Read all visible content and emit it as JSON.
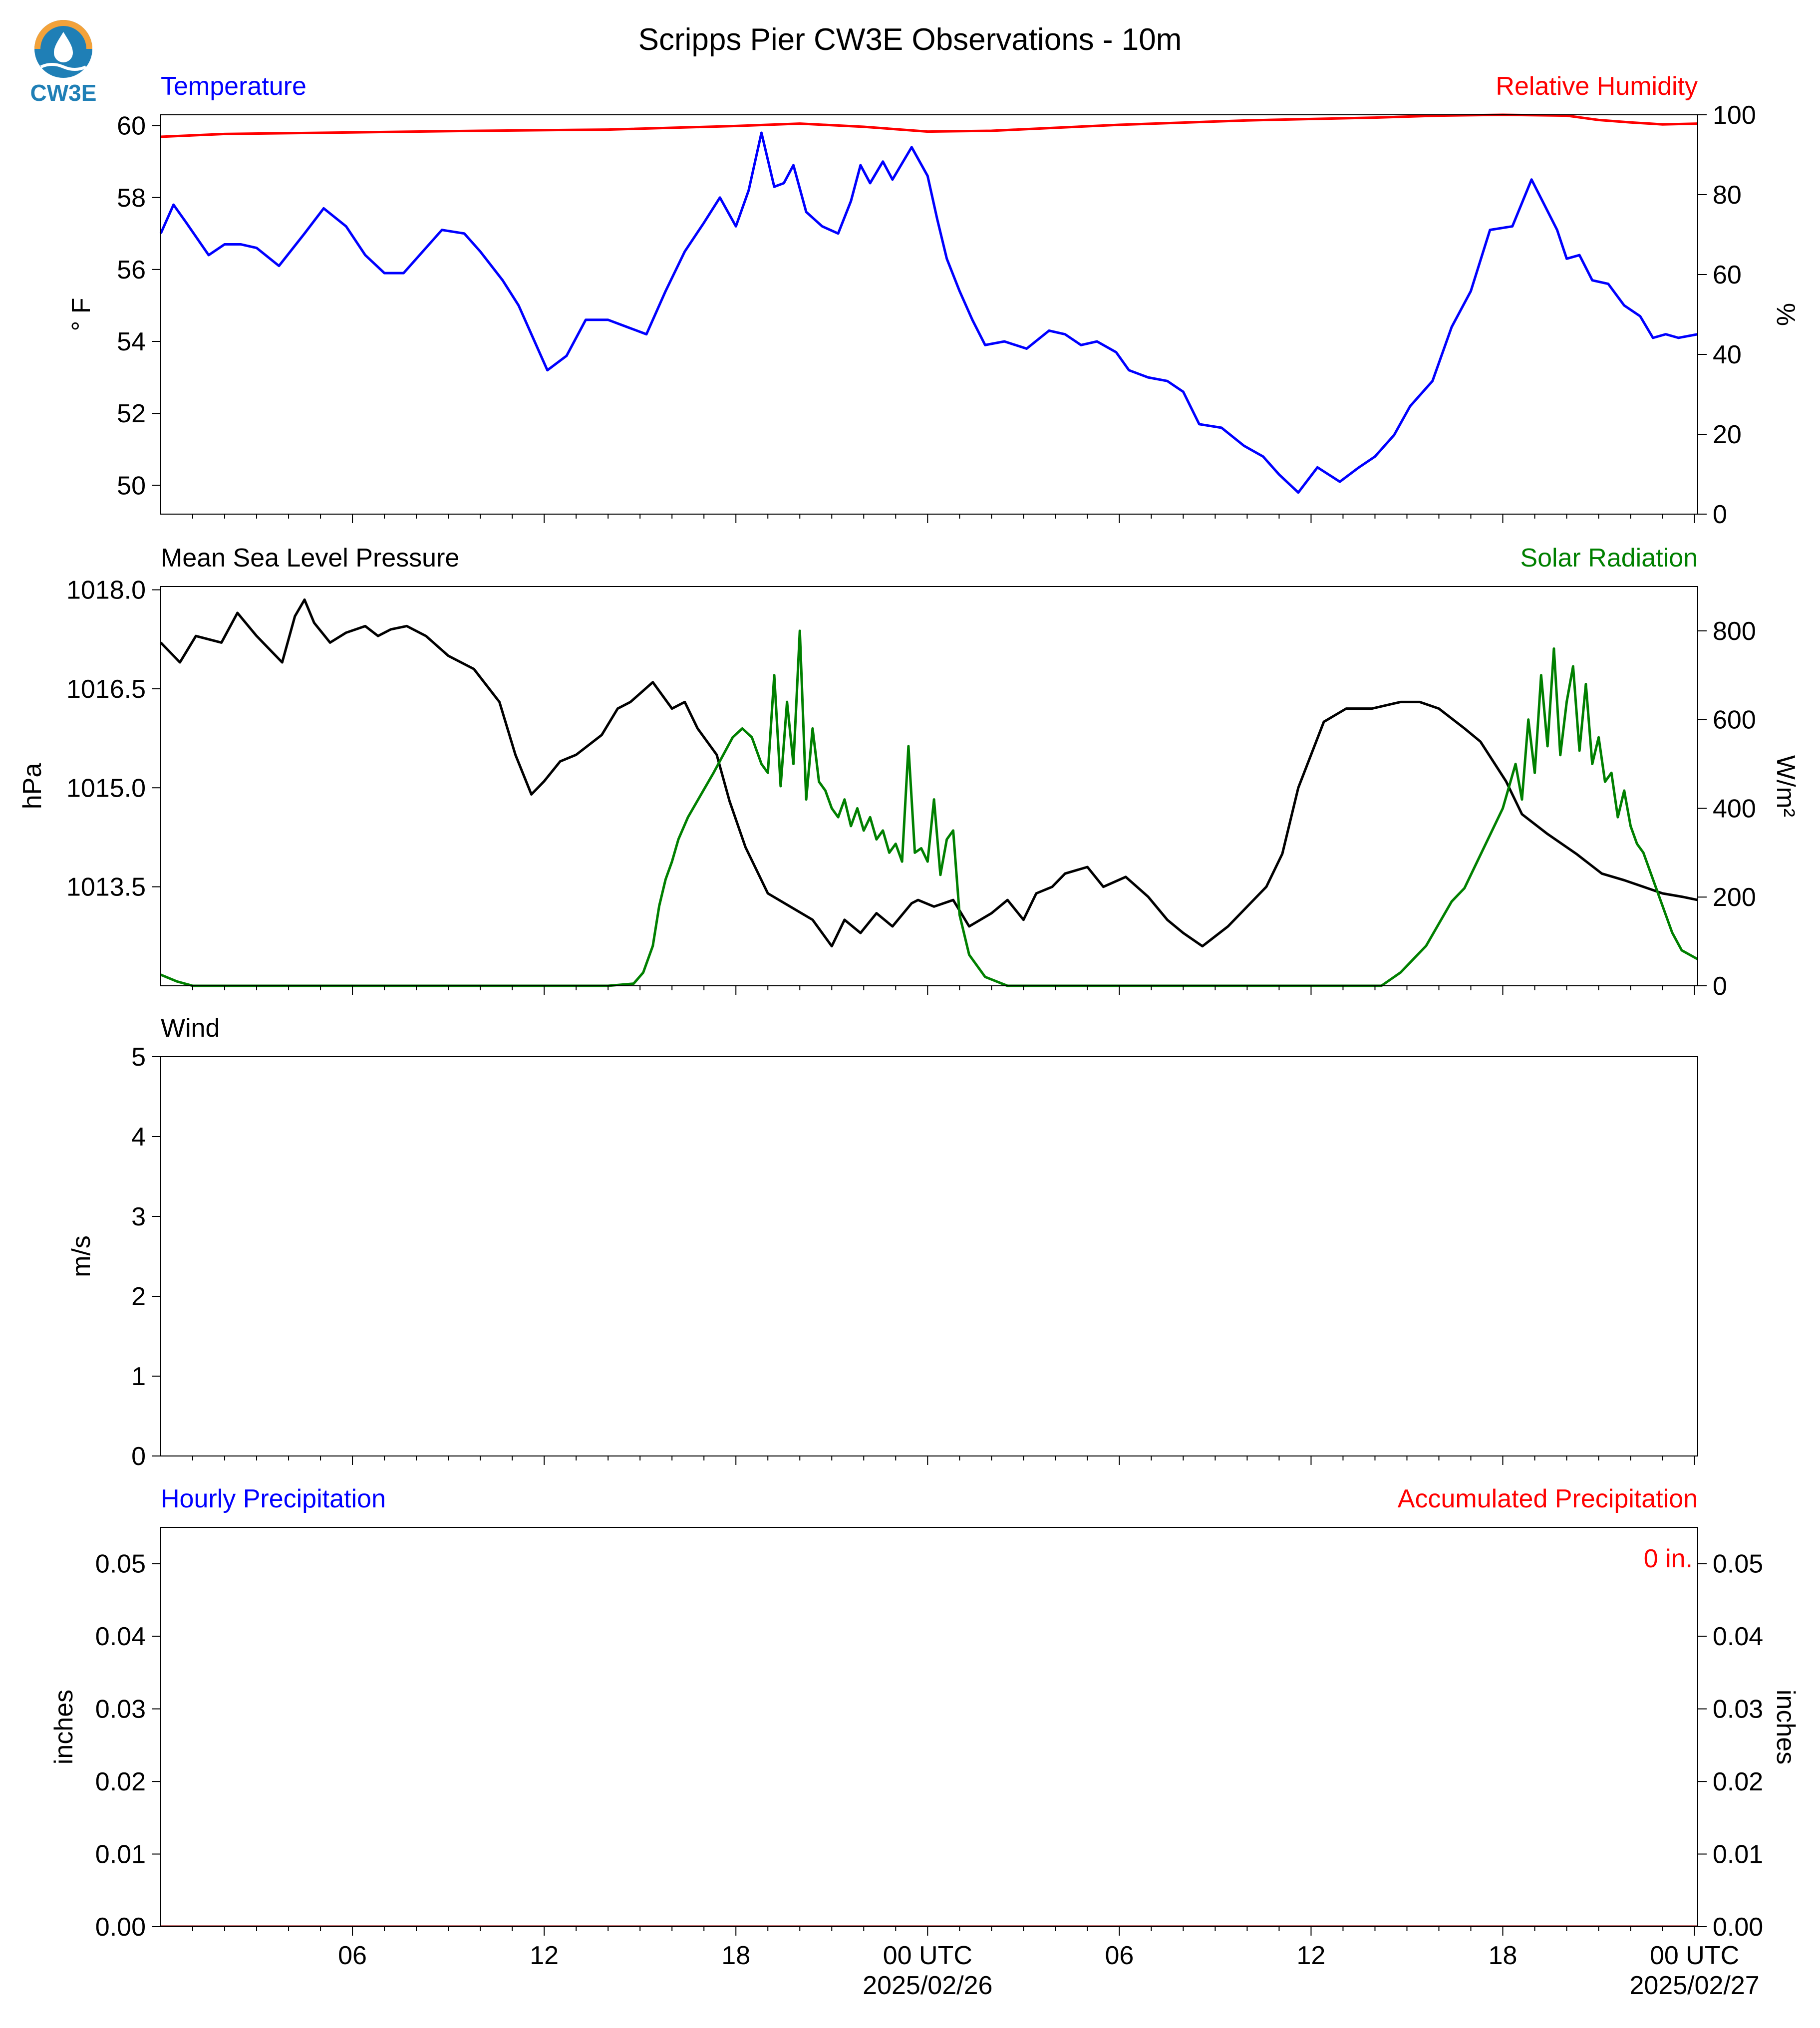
{
  "title": "Scripps Pier CW3E Observations - 10m",
  "logo": {
    "text": "CW3E",
    "icon": "cw3e-drop-logo-icon",
    "colors": {
      "orange": "#f3a23a",
      "blue": "#1f7fb6"
    }
  },
  "chart_data": [
    {
      "id": "temp_rh",
      "type": "line",
      "title_left": "Temperature",
      "title_right": "Relative Humidity",
      "ylabel_left": "° F",
      "ylabel_right": "%",
      "ylim_left": [
        49.2,
        60.3
      ],
      "ylim_right": [
        0,
        100
      ],
      "yticks_left": [
        50,
        52,
        54,
        56,
        58,
        60
      ],
      "yticks_right": [
        0,
        20,
        40,
        60,
        80,
        100
      ],
      "xlim_hours": [
        -24,
        24.1
      ],
      "series": [
        {
          "name": "Temperature",
          "axis": "left",
          "color": "#0000ff",
          "x": [
            -24,
            -23.6,
            -23.2,
            -22.5,
            -22,
            -21.5,
            -21,
            -20.3,
            -19.5,
            -18.9,
            -18.2,
            -17.6,
            -17,
            -16.4,
            -15.8,
            -15.2,
            -14.5,
            -14,
            -13.3,
            -12.8,
            -12.3,
            -11.9,
            -11.3,
            -10.7,
            -10,
            -9.4,
            -8.8,
            -8.2,
            -7.6,
            -7,
            -6.5,
            -6,
            -5.6,
            -5.2,
            -4.8,
            -4.5,
            -4.2,
            -3.8,
            -3.3,
            -2.8,
            -2.4,
            -2.1,
            -1.8,
            -1.4,
            -1.1,
            -0.5,
            0,
            0.3,
            0.6,
            1,
            1.4,
            1.8,
            2.4,
            3.1,
            3.8,
            4.3,
            4.8,
            5.3,
            5.9,
            6.3,
            6.9,
            7.5,
            8,
            8.5,
            9.2,
            9.9,
            10.5,
            11,
            11.6,
            12.2,
            12.9,
            13.5,
            14,
            14.6,
            15.1,
            15.8,
            16.4,
            17,
            17.6,
            18.3,
            18.9,
            19.3,
            19.7,
            20,
            20.4,
            20.8,
            21.3,
            21.8,
            22.3,
            22.7,
            23.1,
            23.5,
            24.1
          ],
          "y": [
            57.0,
            57.8,
            57.3,
            56.4,
            56.7,
            56.7,
            56.6,
            56.1,
            57.0,
            57.7,
            57.2,
            56.4,
            55.9,
            55.9,
            56.5,
            57.1,
            57.0,
            56.5,
            55.7,
            55.0,
            54.0,
            53.2,
            53.6,
            54.6,
            54.6,
            54.4,
            54.2,
            55.4,
            56.5,
            57.3,
            58.0,
            57.2,
            58.2,
            59.8,
            58.3,
            58.4,
            58.9,
            57.6,
            57.2,
            57.0,
            57.9,
            58.9,
            58.4,
            59.0,
            58.5,
            59.4,
            58.6,
            57.4,
            56.3,
            55.4,
            54.6,
            53.9,
            54.0,
            53.8,
            54.3,
            54.2,
            53.9,
            54.0,
            53.7,
            53.2,
            53.0,
            52.9,
            52.6,
            51.7,
            51.6,
            51.1,
            50.8,
            50.3,
            49.8,
            50.5,
            50.1,
            50.5,
            50.8,
            51.4,
            52.2,
            52.9,
            54.4,
            55.4,
            57.1,
            57.2,
            58.5,
            57.8,
            57.1,
            56.3,
            56.4,
            55.7,
            55.6,
            55.0,
            54.7,
            54.1,
            54.2,
            54.1,
            54.2
          ]
        },
        {
          "name": "Relative Humidity",
          "axis": "right",
          "color": "#ff0000",
          "x": [
            -24,
            -22,
            -18,
            -14,
            -10,
            -6,
            -4,
            -2,
            0,
            2,
            6,
            10,
            14,
            16,
            18,
            20,
            21,
            22,
            23,
            24.1
          ],
          "y": [
            94.5,
            95.2,
            95.6,
            96,
            96.3,
            97.2,
            97.8,
            97,
            95.8,
            96,
            97.5,
            98.6,
            99.3,
            99.8,
            100,
            99.8,
            98.7,
            98.1,
            97.6,
            97.8
          ]
        }
      ]
    },
    {
      "id": "pressure_solar",
      "type": "line",
      "title_left": "Mean Sea Level Pressure",
      "title_right": "Solar Radiation",
      "ylabel_left": "hPa",
      "ylabel_right": "W/m²",
      "ylim_left": [
        1012.0,
        1018.05
      ],
      "ylim_right": [
        0,
        900
      ],
      "yticks_left": [
        1013.5,
        1015.0,
        1016.5,
        1018.0
      ],
      "yticks_left_labels": [
        "1013.5",
        "1015.0",
        "1016.5",
        "1018.0"
      ],
      "yticks_right": [
        0,
        200,
        400,
        600,
        800
      ],
      "xlim_hours": [
        -24,
        24.1
      ],
      "series": [
        {
          "name": "Mean Sea Level Pressure",
          "axis": "left",
          "color": "#000000",
          "x": [
            -24,
            -23.4,
            -22.9,
            -22.1,
            -21.6,
            -21,
            -20.2,
            -19.8,
            -19.5,
            -19.2,
            -18.7,
            -18.2,
            -17.6,
            -17.2,
            -16.8,
            -16.3,
            -15.7,
            -15,
            -14.2,
            -13.4,
            -12.9,
            -12.4,
            -12,
            -11.5,
            -11,
            -10.2,
            -9.7,
            -9.3,
            -8.6,
            -8,
            -7.6,
            -7.2,
            -6.6,
            -6.2,
            -5.7,
            -5,
            -4.3,
            -3.6,
            -3.0,
            -2.6,
            -2.1,
            -1.6,
            -1.1,
            -0.5,
            -0.3,
            0.2,
            0.8,
            1.3,
            2.0,
            2.5,
            3.0,
            3.4,
            3.9,
            4.3,
            5.0,
            5.5,
            6.2,
            6.9,
            7.5,
            8.0,
            8.6,
            9.4,
            10,
            10.6,
            11.1,
            11.6,
            12.4,
            13.1,
            13.9,
            14.8,
            15.4,
            16,
            16.8,
            17.3,
            18.1,
            18.6,
            19.4,
            20.3,
            21.1,
            21.8,
            22.4,
            23,
            23.6,
            24.1
          ],
          "y": [
            1017.2,
            1016.9,
            1017.3,
            1017.2,
            1017.65,
            1017.3,
            1016.9,
            1017.6,
            1017.85,
            1017.5,
            1017.2,
            1017.35,
            1017.45,
            1017.3,
            1017.4,
            1017.45,
            1017.3,
            1017.0,
            1016.8,
            1016.3,
            1015.5,
            1014.9,
            1015.1,
            1015.4,
            1015.5,
            1015.8,
            1016.2,
            1016.3,
            1016.6,
            1016.2,
            1016.3,
            1015.9,
            1015.5,
            1014.8,
            1014.1,
            1013.4,
            1013.2,
            1013.0,
            1012.6,
            1013.0,
            1012.8,
            1013.1,
            1012.9,
            1013.25,
            1013.3,
            1013.2,
            1013.3,
            1012.9,
            1013.1,
            1013.3,
            1013.0,
            1013.4,
            1013.5,
            1013.7,
            1013.8,
            1013.5,
            1013.65,
            1013.35,
            1013.0,
            1012.8,
            1012.6,
            1012.9,
            1013.2,
            1013.5,
            1014.0,
            1015.0,
            1016.0,
            1016.2,
            1016.2,
            1016.3,
            1016.3,
            1016.2,
            1015.9,
            1015.7,
            1015.1,
            1014.6,
            1014.3,
            1014.0,
            1013.7,
            1013.6,
            1013.5,
            1013.4,
            1013.35,
            1013.3
          ]
        },
        {
          "name": "Solar Radiation",
          "axis": "right",
          "color": "#008000",
          "x": [
            -24,
            -23.5,
            -23,
            -20,
            -16,
            -12,
            -10,
            -9.2,
            -8.9,
            -8.6,
            -8.4,
            -8.2,
            -8.0,
            -7.8,
            -7.5,
            -7.1,
            -6.7,
            -6.4,
            -6.1,
            -5.8,
            -5.5,
            -5.2,
            -5.0,
            -4.8,
            -4.6,
            -4.4,
            -4.2,
            -4.0,
            -3.8,
            -3.6,
            -3.4,
            -3.2,
            -3.0,
            -2.8,
            -2.6,
            -2.4,
            -2.2,
            -2.0,
            -1.8,
            -1.6,
            -1.4,
            -1.2,
            -1.0,
            -0.8,
            -0.6,
            -0.4,
            -0.2,
            0.0,
            0.2,
            0.4,
            0.6,
            0.8,
            1.0,
            1.3,
            1.8,
            2.5,
            4,
            8,
            12,
            14.2,
            14.8,
            15.2,
            15.6,
            16.0,
            16.4,
            16.8,
            17.2,
            17.6,
            18.0,
            18.4,
            18.6,
            18.8,
            19.0,
            19.2,
            19.4,
            19.6,
            19.8,
            20.0,
            20.2,
            20.4,
            20.6,
            20.8,
            21.0,
            21.2,
            21.4,
            21.6,
            21.8,
            22.0,
            22.2,
            22.4,
            22.6,
            22.8,
            23.0,
            23.3,
            23.6,
            24.1
          ],
          "y": [
            25,
            10,
            0,
            0,
            0,
            0,
            0,
            5,
            30,
            90,
            180,
            240,
            280,
            330,
            380,
            430,
            480,
            520,
            560,
            580,
            560,
            500,
            480,
            700,
            450,
            640,
            500,
            800,
            420,
            580,
            460,
            440,
            400,
            380,
            420,
            360,
            400,
            350,
            380,
            330,
            350,
            300,
            320,
            280,
            540,
            300,
            310,
            280,
            420,
            250,
            330,
            350,
            160,
            70,
            20,
            0,
            0,
            0,
            0,
            0,
            30,
            60,
            90,
            140,
            190,
            220,
            280,
            340,
            400,
            500,
            420,
            600,
            480,
            700,
            540,
            760,
            520,
            640,
            720,
            530,
            680,
            500,
            560,
            460,
            480,
            380,
            440,
            360,
            320,
            300,
            260,
            220,
            180,
            120,
            80,
            60
          ]
        }
      ]
    },
    {
      "id": "wind",
      "type": "line",
      "title_left": "Wind",
      "ylabel_left": "m/s",
      "ylim_left": [
        0,
        5
      ],
      "yticks_left": [
        0,
        1,
        2,
        3,
        4,
        5
      ],
      "xlim_hours": [
        -24,
        24.1
      ],
      "series": []
    },
    {
      "id": "precip",
      "type": "bar",
      "title_left": "Hourly Precipitation",
      "title_right": "Accumulated Precipitation",
      "ylabel_left": "inches",
      "ylabel_right": "inches",
      "ylim_left": [
        0,
        0.055
      ],
      "ylim_right": [
        0,
        0.055
      ],
      "yticks_left": [
        0.0,
        0.01,
        0.02,
        0.03,
        0.04,
        0.05
      ],
      "yticks_left_labels": [
        "0.00",
        "0.01",
        "0.02",
        "0.03",
        "0.04",
        "0.05"
      ],
      "yticks_right": [
        0.0,
        0.01,
        0.02,
        0.03,
        0.04,
        0.05
      ],
      "yticks_right_labels": [
        "0.00",
        "0.01",
        "0.02",
        "0.03",
        "0.04",
        "0.05"
      ],
      "annotation": "0 in.",
      "xlim_hours": [
        -24,
        24.1
      ],
      "series": [
        {
          "name": "Hourly Precipitation",
          "axis": "left",
          "color": "#0000ff",
          "x": [
            -24,
            24.1
          ],
          "y": [
            0,
            0
          ]
        },
        {
          "name": "Accumulated Precipitation",
          "axis": "right",
          "color": "#8b0000",
          "x": [
            -24,
            24.1
          ],
          "y": [
            0,
            0
          ]
        }
      ]
    }
  ],
  "xaxis": {
    "major_ticks_hours": [
      -18,
      -12,
      -6,
      0,
      6,
      12,
      18,
      24
    ],
    "major_labels": [
      "06",
      "12",
      "18",
      "00 UTC",
      "06",
      "12",
      "18",
      "00 UTC"
    ],
    "date_labels": [
      {
        "hour": 0,
        "text": "2025/02/26"
      },
      {
        "hour": 24,
        "text": "2025/02/27"
      }
    ]
  },
  "colors": {
    "blue": "#0000ff",
    "red": "#ff0000",
    "green": "#008000",
    "black": "#000000"
  }
}
